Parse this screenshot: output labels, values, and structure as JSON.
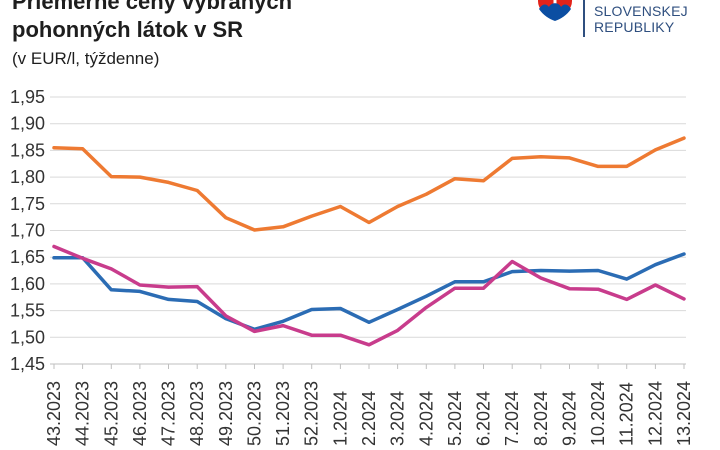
{
  "chart_data": {
    "type": "line",
    "title": "Priemerné ceny vybraných pohonných látok v SR",
    "subtitle": "(v EUR/l, týždenne)",
    "categories": [
      "43.2023",
      "44.2023",
      "45.2023",
      "46.2023",
      "47.2023",
      "48.2023",
      "49.2023",
      "50.2023",
      "51.2023",
      "52.2023",
      "1.2024",
      "2.2024",
      "3.2024",
      "4.2024",
      "5.2024",
      "6.2024",
      "7.2024",
      "8.2024",
      "9.2024",
      "10.2024",
      "11.2024",
      "12.2024",
      "13.2024"
    ],
    "ylim": [
      1.45,
      1.95
    ],
    "yticks": {
      "values": [
        1.95,
        1.9,
        1.85,
        1.8,
        1.75,
        1.7,
        1.65,
        1.6,
        1.55,
        1.5,
        1.45
      ],
      "labels": [
        "1,95",
        "1,90",
        "1,85",
        "1,80",
        "1,75",
        "1,70",
        "1,65",
        "1,60",
        "1,55",
        "1,50",
        "1,45"
      ]
    },
    "grid": true,
    "series": [
      {
        "color": "#ee7a32",
        "values": [
          1.855,
          1.853,
          1.801,
          1.8,
          1.79,
          1.775,
          1.724,
          1.701,
          1.707,
          1.727,
          1.745,
          1.715,
          1.745,
          1.768,
          1.797,
          1.793,
          1.835,
          1.838,
          1.836,
          1.82,
          1.82,
          1.851,
          1.873
        ]
      },
      {
        "color": "#2b6cb4",
        "values": [
          1.649,
          1.649,
          1.589,
          1.586,
          1.571,
          1.567,
          1.535,
          1.515,
          1.53,
          1.552,
          1.554,
          1.528,
          1.552,
          1.577,
          1.604,
          1.604,
          1.623,
          1.625,
          1.624,
          1.625,
          1.609,
          1.636,
          1.656
        ]
      },
      {
        "color": "#c83c8c",
        "values": [
          1.67,
          1.648,
          1.628,
          1.598,
          1.594,
          1.595,
          1.54,
          1.511,
          1.522,
          1.504,
          1.504,
          1.486,
          1.513,
          1.556,
          1.592,
          1.592,
          1.642,
          1.611,
          1.591,
          1.59,
          1.571,
          1.598,
          1.572
        ]
      }
    ]
  },
  "logo": {
    "icon": "slovak-coat-of-arms-icon",
    "text_lines": [
      "SLOVENSKEJ",
      "REPUBLIKY"
    ],
    "color": "#2f4f7f"
  }
}
